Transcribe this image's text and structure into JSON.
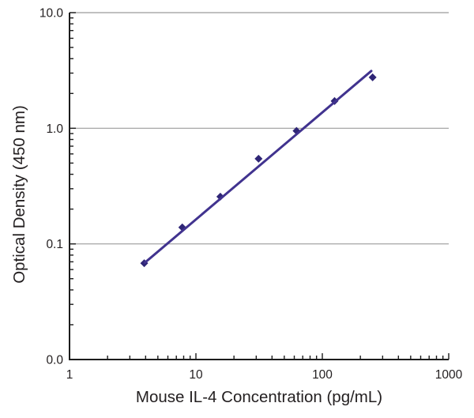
{
  "chart_data": {
    "type": "scatter",
    "title": "",
    "xlabel": "Mouse IL-4 Concentration (pg/mL)",
    "ylabel": "Optical Density (450 nm)",
    "x_scale": "log",
    "y_scale": "log",
    "xlim": [
      1,
      1000
    ],
    "ylim": [
      0.01,
      10
    ],
    "x_ticks": [
      {
        "value": 1,
        "label": "1"
      },
      {
        "value": 10,
        "label": "10"
      },
      {
        "value": 100,
        "label": "100"
      },
      {
        "value": 1000,
        "label": "1000"
      }
    ],
    "y_ticks": [
      {
        "value": 10,
        "label": "10.0"
      },
      {
        "value": 1,
        "label": "1.0"
      },
      {
        "value": 0.1,
        "label": "0.1"
      },
      {
        "value": 0.01,
        "label": "0.0"
      }
    ],
    "gridlines_y": [
      10,
      1,
      0.1
    ],
    "grid_style": "horizontal-major-only",
    "legend": "none",
    "series": [
      {
        "name": "standard-curve-points",
        "kind": "scatter",
        "marker": "diamond",
        "color": "#2f2676",
        "points": [
          {
            "x": 3.9,
            "y": 0.068
          },
          {
            "x": 7.8,
            "y": 0.139
          },
          {
            "x": 15.6,
            "y": 0.256
          },
          {
            "x": 31.3,
            "y": 0.545
          },
          {
            "x": 62.5,
            "y": 0.95
          },
          {
            "x": 125,
            "y": 1.72
          },
          {
            "x": 250,
            "y": 2.76
          }
        ]
      },
      {
        "name": "fit-line",
        "kind": "line",
        "color": "#41338f",
        "points": [
          {
            "x": 3.95,
            "y": 0.069
          },
          {
            "x": 4.33,
            "y": 0.075
          },
          {
            "x": 244,
            "y": 3.13
          }
        ]
      }
    ],
    "colors": {
      "grid": "#9b9b9b",
      "axis": "#1c1c1c",
      "text": "#231f20",
      "background": "#ffffff"
    }
  }
}
